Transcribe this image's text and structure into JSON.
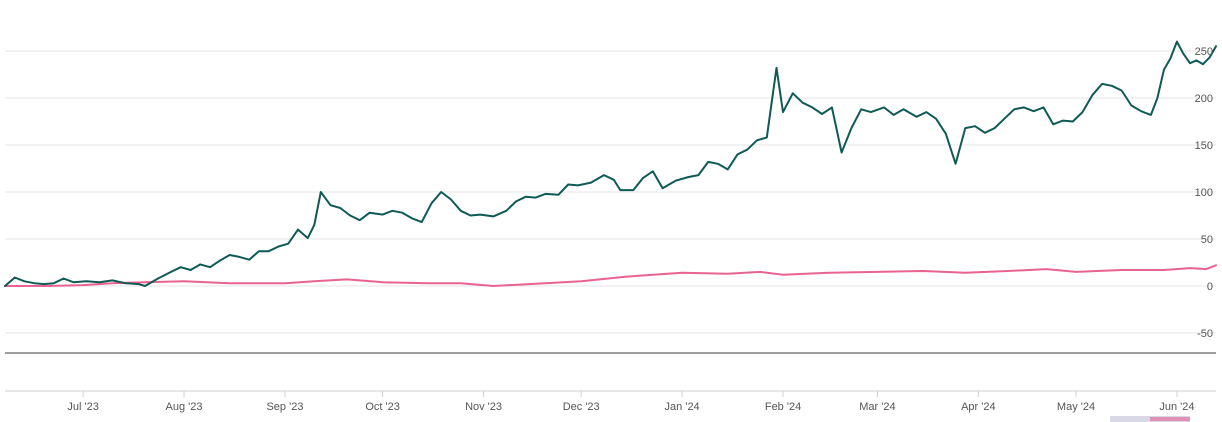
{
  "chart_data": {
    "type": "line",
    "title": "",
    "xlabel": "",
    "ylabel": "",
    "ylim": [
      -70,
      280
    ],
    "y_ticks": [
      -50,
      0,
      50,
      100,
      150,
      200,
      250
    ],
    "y_tick_labels": [
      "-50",
      "0",
      "50",
      "100",
      "150",
      "200",
      "250"
    ],
    "x_ticks": [
      {
        "label": "Jul '23",
        "date": "2023-07-01"
      },
      {
        "label": "Aug '23",
        "date": "2023-08-01"
      },
      {
        "label": "Sep '23",
        "date": "2023-09-01"
      },
      {
        "label": "Oct '23",
        "date": "2023-10-01"
      },
      {
        "label": "Nov '23",
        "date": "2023-11-01"
      },
      {
        "label": "Dec '23",
        "date": "2023-12-01"
      },
      {
        "label": "Jan '24",
        "date": "2024-01-01"
      },
      {
        "label": "Feb '24",
        "date": "2024-02-01"
      },
      {
        "label": "Mar '24",
        "date": "2024-03-01"
      },
      {
        "label": "Apr '24",
        "date": "2024-04-01"
      },
      {
        "label": "May '24",
        "date": "2024-05-01"
      },
      {
        "label": "Jun '24",
        "date": "2024-06-01"
      }
    ],
    "grid": true,
    "legend": "none",
    "series": [
      {
        "color": "#0f5a55",
        "points": [
          [
            "2023-06-07",
            0
          ],
          [
            "2023-06-10",
            9
          ],
          [
            "2023-06-13",
            5
          ],
          [
            "2023-06-16",
            3
          ],
          [
            "2023-06-19",
            2
          ],
          [
            "2023-06-22",
            3
          ],
          [
            "2023-06-25",
            8
          ],
          [
            "2023-06-28",
            4
          ],
          [
            "2023-07-02",
            5
          ],
          [
            "2023-07-06",
            4
          ],
          [
            "2023-07-10",
            6
          ],
          [
            "2023-07-14",
            3
          ],
          [
            "2023-07-18",
            2
          ],
          [
            "2023-07-20",
            0
          ],
          [
            "2023-07-24",
            8
          ],
          [
            "2023-07-28",
            15
          ],
          [
            "2023-07-31",
            20
          ],
          [
            "2023-08-03",
            17
          ],
          [
            "2023-08-06",
            23
          ],
          [
            "2023-08-09",
            20
          ],
          [
            "2023-08-12",
            27
          ],
          [
            "2023-08-15",
            33
          ],
          [
            "2023-08-18",
            31
          ],
          [
            "2023-08-21",
            28
          ],
          [
            "2023-08-24",
            37
          ],
          [
            "2023-08-27",
            37
          ],
          [
            "2023-08-30",
            42
          ],
          [
            "2023-09-02",
            45
          ],
          [
            "2023-09-05",
            60
          ],
          [
            "2023-09-08",
            51
          ],
          [
            "2023-09-10",
            65
          ],
          [
            "2023-09-12",
            100
          ],
          [
            "2023-09-15",
            86
          ],
          [
            "2023-09-18",
            83
          ],
          [
            "2023-09-21",
            75
          ],
          [
            "2023-09-24",
            70
          ],
          [
            "2023-09-27",
            78
          ],
          [
            "2023-10-01",
            76
          ],
          [
            "2023-10-04",
            80
          ],
          [
            "2023-10-07",
            78
          ],
          [
            "2023-10-10",
            72
          ],
          [
            "2023-10-13",
            68
          ],
          [
            "2023-10-16",
            88
          ],
          [
            "2023-10-19",
            100
          ],
          [
            "2023-10-22",
            92
          ],
          [
            "2023-10-25",
            80
          ],
          [
            "2023-10-28",
            75
          ],
          [
            "2023-10-31",
            76
          ],
          [
            "2023-11-04",
            74
          ],
          [
            "2023-11-08",
            80
          ],
          [
            "2023-11-11",
            90
          ],
          [
            "2023-11-14",
            95
          ],
          [
            "2023-11-17",
            94
          ],
          [
            "2023-11-20",
            98
          ],
          [
            "2023-11-24",
            97
          ],
          [
            "2023-11-27",
            108
          ],
          [
            "2023-11-30",
            107
          ],
          [
            "2023-12-04",
            110
          ],
          [
            "2023-12-08",
            118
          ],
          [
            "2023-12-11",
            113
          ],
          [
            "2023-12-13",
            102
          ],
          [
            "2023-12-17",
            102
          ],
          [
            "2023-12-20",
            115
          ],
          [
            "2023-12-23",
            122
          ],
          [
            "2023-12-26",
            104
          ],
          [
            "2023-12-30",
            112
          ],
          [
            "2024-01-03",
            116
          ],
          [
            "2024-01-06",
            118
          ],
          [
            "2024-01-09",
            132
          ],
          [
            "2024-01-12",
            130
          ],
          [
            "2024-01-15",
            124
          ],
          [
            "2024-01-18",
            140
          ],
          [
            "2024-01-21",
            145
          ],
          [
            "2024-01-24",
            155
          ],
          [
            "2024-01-27",
            158
          ],
          [
            "2024-01-30",
            232
          ],
          [
            "2024-02-01",
            185
          ],
          [
            "2024-02-04",
            205
          ],
          [
            "2024-02-07",
            195
          ],
          [
            "2024-02-10",
            190
          ],
          [
            "2024-02-13",
            183
          ],
          [
            "2024-02-16",
            190
          ],
          [
            "2024-02-19",
            142
          ],
          [
            "2024-02-22",
            168
          ],
          [
            "2024-02-25",
            188
          ],
          [
            "2024-02-28",
            185
          ],
          [
            "2024-03-03",
            190
          ],
          [
            "2024-03-06",
            182
          ],
          [
            "2024-03-09",
            188
          ],
          [
            "2024-03-13",
            180
          ],
          [
            "2024-03-16",
            185
          ],
          [
            "2024-03-19",
            178
          ],
          [
            "2024-03-22",
            162
          ],
          [
            "2024-03-25",
            130
          ],
          [
            "2024-03-28",
            168
          ],
          [
            "2024-03-31",
            170
          ],
          [
            "2024-04-03",
            163
          ],
          [
            "2024-04-06",
            168
          ],
          [
            "2024-04-09",
            178
          ],
          [
            "2024-04-12",
            188
          ],
          [
            "2024-04-15",
            190
          ],
          [
            "2024-04-18",
            186
          ],
          [
            "2024-04-21",
            190
          ],
          [
            "2024-04-24",
            172
          ],
          [
            "2024-04-27",
            176
          ],
          [
            "2024-04-30",
            175
          ],
          [
            "2024-05-03",
            185
          ],
          [
            "2024-05-06",
            203
          ],
          [
            "2024-05-09",
            215
          ],
          [
            "2024-05-12",
            213
          ],
          [
            "2024-05-15",
            208
          ],
          [
            "2024-05-18",
            192
          ],
          [
            "2024-05-21",
            186
          ],
          [
            "2024-05-24",
            182
          ],
          [
            "2024-05-26",
            200
          ],
          [
            "2024-05-28",
            230
          ],
          [
            "2024-05-30",
            242
          ],
          [
            "2024-06-01",
            260
          ],
          [
            "2024-06-03",
            247
          ],
          [
            "2024-06-05",
            237
          ],
          [
            "2024-06-07",
            240
          ],
          [
            "2024-06-09",
            236
          ],
          [
            "2024-06-11",
            243
          ],
          [
            "2024-06-13",
            255
          ]
        ]
      },
      {
        "color": "#e8638f",
        "points": [
          [
            "2023-06-07",
            0
          ],
          [
            "2023-06-20",
            0
          ],
          [
            "2023-07-01",
            1
          ],
          [
            "2023-07-10",
            3
          ],
          [
            "2023-07-20",
            4
          ],
          [
            "2023-08-01",
            5
          ],
          [
            "2023-08-15",
            3
          ],
          [
            "2023-09-01",
            3
          ],
          [
            "2023-09-10",
            5
          ],
          [
            "2023-09-20",
            7
          ],
          [
            "2023-10-01",
            4
          ],
          [
            "2023-10-15",
            3
          ],
          [
            "2023-10-25",
            3
          ],
          [
            "2023-11-04",
            0
          ],
          [
            "2023-11-15",
            2
          ],
          [
            "2023-12-01",
            5
          ],
          [
            "2023-12-15",
            10
          ],
          [
            "2024-01-01",
            14
          ],
          [
            "2024-01-15",
            13
          ],
          [
            "2024-01-25",
            15
          ],
          [
            "2024-02-01",
            12
          ],
          [
            "2024-02-15",
            14
          ],
          [
            "2024-03-01",
            15
          ],
          [
            "2024-03-15",
            16
          ],
          [
            "2024-03-28",
            14
          ],
          [
            "2024-04-10",
            16
          ],
          [
            "2024-04-22",
            18
          ],
          [
            "2024-05-01",
            15
          ],
          [
            "2024-05-15",
            17
          ],
          [
            "2024-05-28",
            17
          ],
          [
            "2024-06-05",
            19
          ],
          [
            "2024-06-10",
            18
          ],
          [
            "2024-06-13",
            22
          ]
        ]
      }
    ]
  }
}
